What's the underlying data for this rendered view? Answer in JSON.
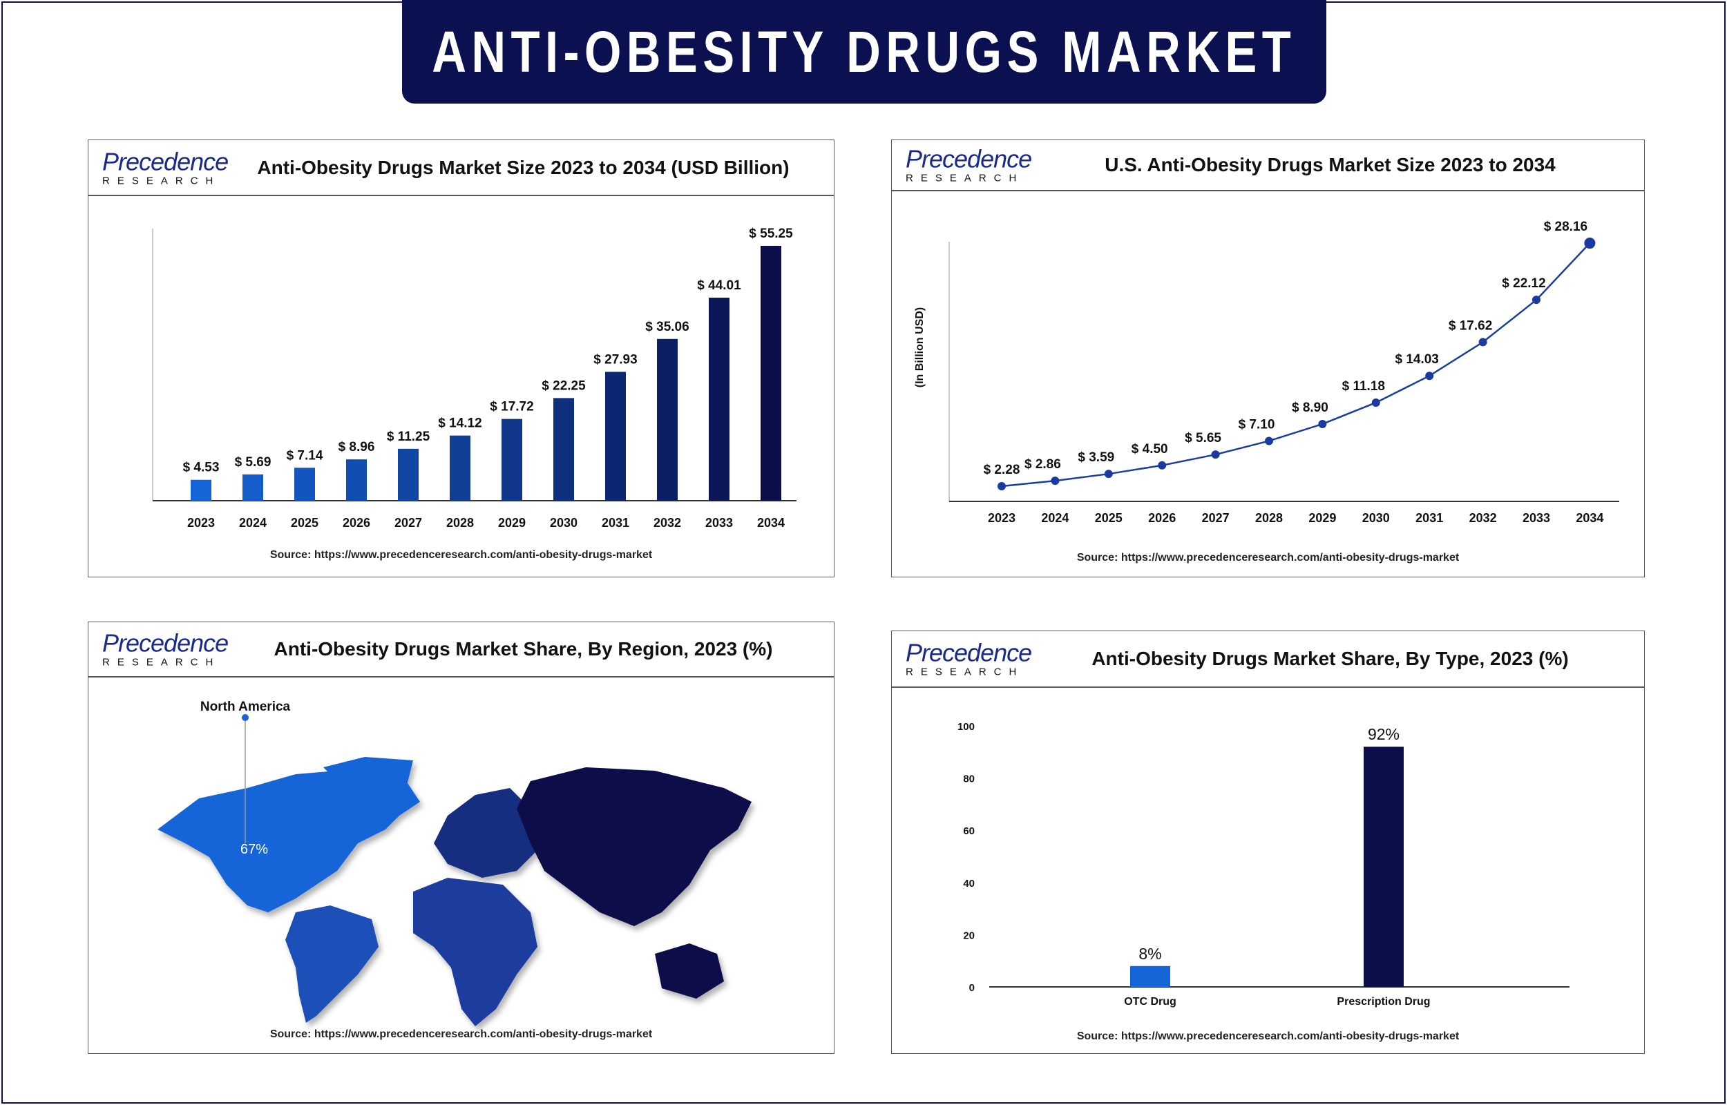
{
  "banner": {
    "title": "ANTI-OBESITY DRUGS MARKET"
  },
  "logo": {
    "name": "Precedence",
    "sub": "RESEARCH"
  },
  "source": "Source: https://www.precedenceresearch.com/anti-obesity-drugs-market",
  "colors": {
    "navy": "#0b1150",
    "blue": "#1565d8",
    "dark": "#0a0f4a"
  },
  "chart_data": [
    {
      "type": "bar",
      "title": "Anti-Obesity Drugs Market Size 2023 to 2034 (USD Billion)",
      "categories": [
        "2023",
        "2024",
        "2025",
        "2026",
        "2027",
        "2028",
        "2029",
        "2030",
        "2031",
        "2032",
        "2033",
        "2034"
      ],
      "values": [
        4.53,
        5.69,
        7.14,
        8.96,
        11.25,
        14.12,
        17.72,
        22.25,
        27.93,
        35.06,
        44.01,
        55.25
      ],
      "labels": [
        "$ 4.53",
        "$ 5.69",
        "$ 7.14",
        "$ 8.96",
        "$ 11.25",
        "$ 14.12",
        "$ 17.72",
        "$ 22.25",
        "$ 27.93",
        "$ 35.06",
        "$ 44.01",
        "$ 55.25"
      ],
      "xlabel": "",
      "ylabel": ""
    },
    {
      "type": "line",
      "title": "U.S. Anti-Obesity Drugs Market Size 2023 to 2034",
      "categories": [
        "2023",
        "2024",
        "2025",
        "2026",
        "2027",
        "2028",
        "2029",
        "2030",
        "2031",
        "2032",
        "2033",
        "2034"
      ],
      "values": [
        2.28,
        2.86,
        3.59,
        4.5,
        5.65,
        7.1,
        8.9,
        11.18,
        14.03,
        17.62,
        22.12,
        28.16
      ],
      "labels": [
        "$ 2.28",
        "$ 2.86",
        "$ 3.59",
        "$ 4.50",
        "$ 5.65",
        "$ 7.10",
        "$ 8.90",
        "$ 11.18",
        "$ 14.03",
        "$ 17.62",
        "$ 22.12",
        "$ 28.16"
      ],
      "ylabel": "(In Billion USD)"
    },
    {
      "type": "map",
      "title": "Anti-Obesity Drugs Market Share, By Region, 2023 (%)",
      "highlight": {
        "region": "North America",
        "value": "67%"
      }
    },
    {
      "type": "bar",
      "title": "Anti-Obesity Drugs Market Share, By Type, 2023 (%)",
      "categories": [
        "OTC Drug",
        "Prescription Drug"
      ],
      "values": [
        8,
        92
      ],
      "labels": [
        "8%",
        "92%"
      ],
      "ylim": [
        0,
        100
      ],
      "yticks": [
        "0",
        "20",
        "40",
        "60",
        "80",
        "100"
      ]
    }
  ]
}
